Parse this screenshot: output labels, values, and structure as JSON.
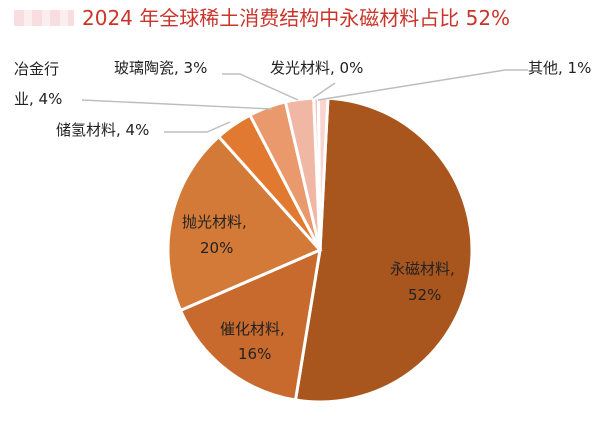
{
  "chart_data": {
    "type": "pie",
    "title": "2024 年全球稀土消费结构中永磁材料占比 52%",
    "slices": [
      {
        "label": "永磁材料",
        "value": 52,
        "percent_label": "52%",
        "color": "#a9551e"
      },
      {
        "label": "催化材料",
        "value": 16,
        "percent_label": "16%",
        "color": "#c86a2d"
      },
      {
        "label": "抛光材料",
        "value": 20,
        "percent_label": "20%",
        "color": "#d47a39"
      },
      {
        "label": "储氢材料",
        "value": 4,
        "percent_label": "4%",
        "color": "#e17a30"
      },
      {
        "label": "冶金行业",
        "value": 4,
        "percent_label": "4%",
        "color": "#e9996c"
      },
      {
        "label": "玻璃陶瓷",
        "value": 3,
        "percent_label": "3%",
        "color": "#efb7a4"
      },
      {
        "label": "发光材料",
        "value": 0,
        "percent_label": "0%",
        "color": "#f6c8bd"
      },
      {
        "label": "其他",
        "value": 1,
        "percent_label": "1%",
        "color": "#f8d6cf"
      }
    ],
    "legend": "none"
  },
  "labels": {
    "yongci_1": "永磁材料,",
    "yongci_2": "52%",
    "cuihua_1": "催化材料,",
    "cuihua_2": "16%",
    "paoguang_1": "抛光材料,",
    "paoguang_2": "20%",
    "chuqing": "储氢材料, 4%",
    "yejin_1": "冶金行",
    "yejin_2": "业, 4%",
    "boli": "玻璃陶瓷, 3%",
    "faguang": "发光材料, 0%",
    "qita": "其他, 1%"
  }
}
